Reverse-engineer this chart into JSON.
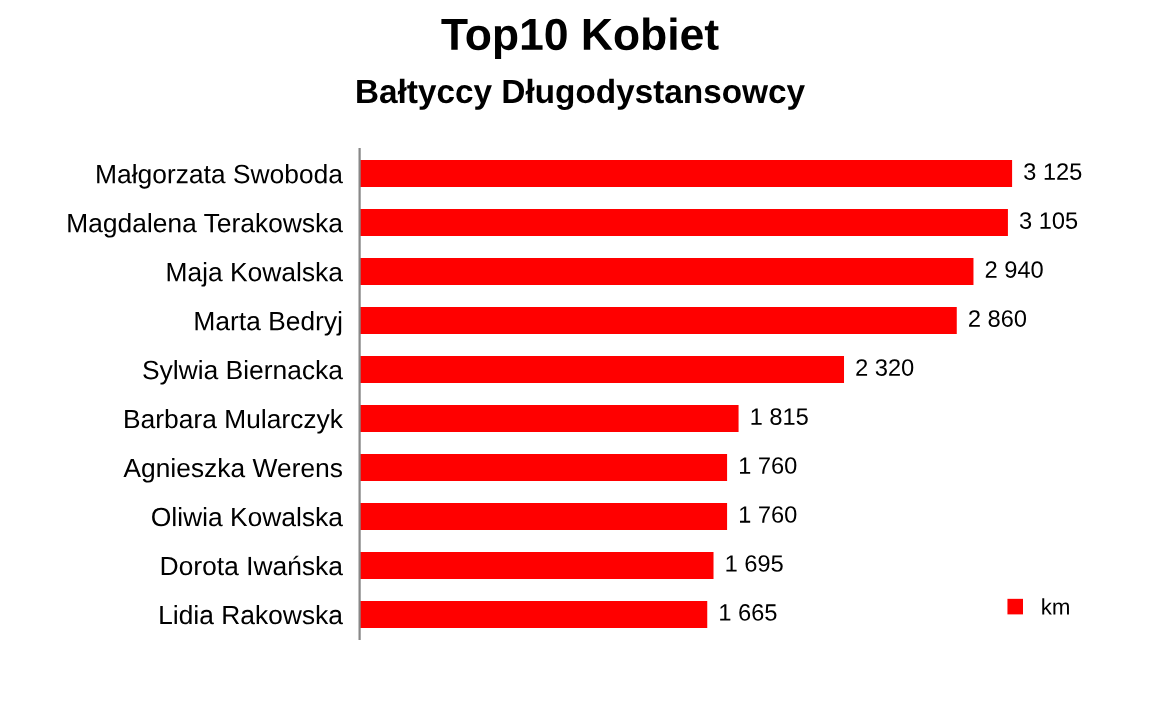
{
  "chart_data": {
    "type": "bar",
    "orientation": "horizontal",
    "title": "Top10 Kobiet",
    "subtitle": "Bałtyccy Długodystansowcy",
    "categories": [
      "Małgorzata Swoboda",
      "Magdalena Terakowska",
      "Maja Kowalska",
      "Marta Bedryj",
      "Sylwia Biernacka",
      "Barbara Mularczyk",
      "Agnieszka Werens",
      "Oliwia Kowalska",
      "Dorota Iwańska",
      "Lidia Rakowska"
    ],
    "series": [
      {
        "name": "km",
        "color": "#ff0000",
        "values": [
          3125,
          3105,
          2940,
          2860,
          2320,
          1815,
          1760,
          1760,
          1695,
          1665
        ],
        "value_labels": [
          "3 125",
          "3 105",
          "2 940",
          "2 860",
          "2 320",
          "1 815",
          "1 760",
          "1 760",
          "1 695",
          "1 665"
        ]
      }
    ],
    "legend": "bottom right",
    "grid": false
  }
}
